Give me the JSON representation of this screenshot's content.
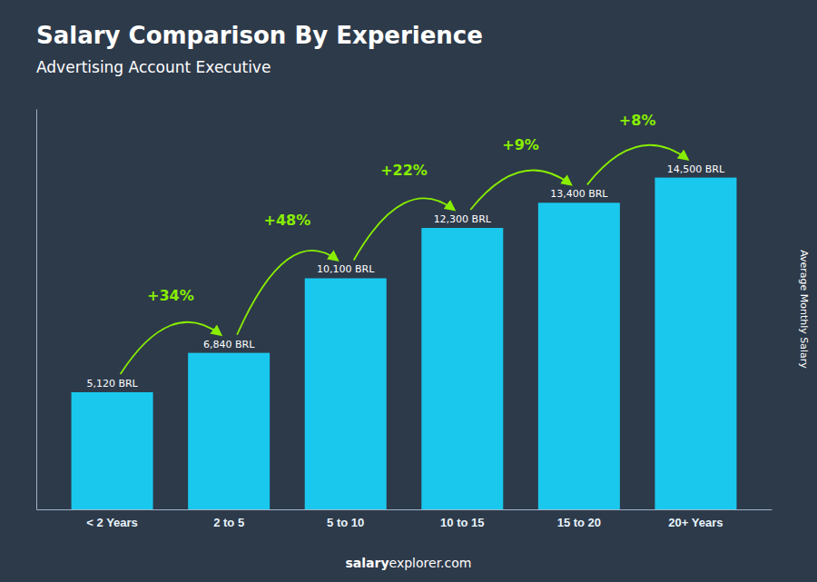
{
  "chart_data": {
    "type": "bar",
    "title": "Salary Comparison By Experience",
    "subtitle": "Advertising Account Executive",
    "categories": [
      "< 2 Years",
      "2 to 5",
      "5 to 10",
      "10 to 15",
      "15 to 20",
      "20+ Years"
    ],
    "values": [
      5120,
      6840,
      10100,
      12300,
      13400,
      14500
    ],
    "value_labels": [
      "5,120 BRL",
      "6,840 BRL",
      "10,100 BRL",
      "12,300 BRL",
      "13,400 BRL",
      "14,500 BRL"
    ],
    "data_labels": true,
    "color": "#1ac8ed",
    "ylim": [
      0,
      17500
    ],
    "yticks": [],
    "tick_labels": "x",
    "y_label": "Average Monthly Salary",
    "annotations": [
      {
        "text": "+34%",
        "color": "#88ee00"
      },
      {
        "text": "+48%",
        "color": "#88ee00"
      },
      {
        "text": "+22%",
        "color": "#88ee00"
      },
      {
        "text": "+9%",
        "color": "#88ee00"
      },
      {
        "text": "+8%",
        "color": "#88ee00"
      }
    ],
    "footer": [
      "salary",
      "explorer.com"
    ]
  }
}
